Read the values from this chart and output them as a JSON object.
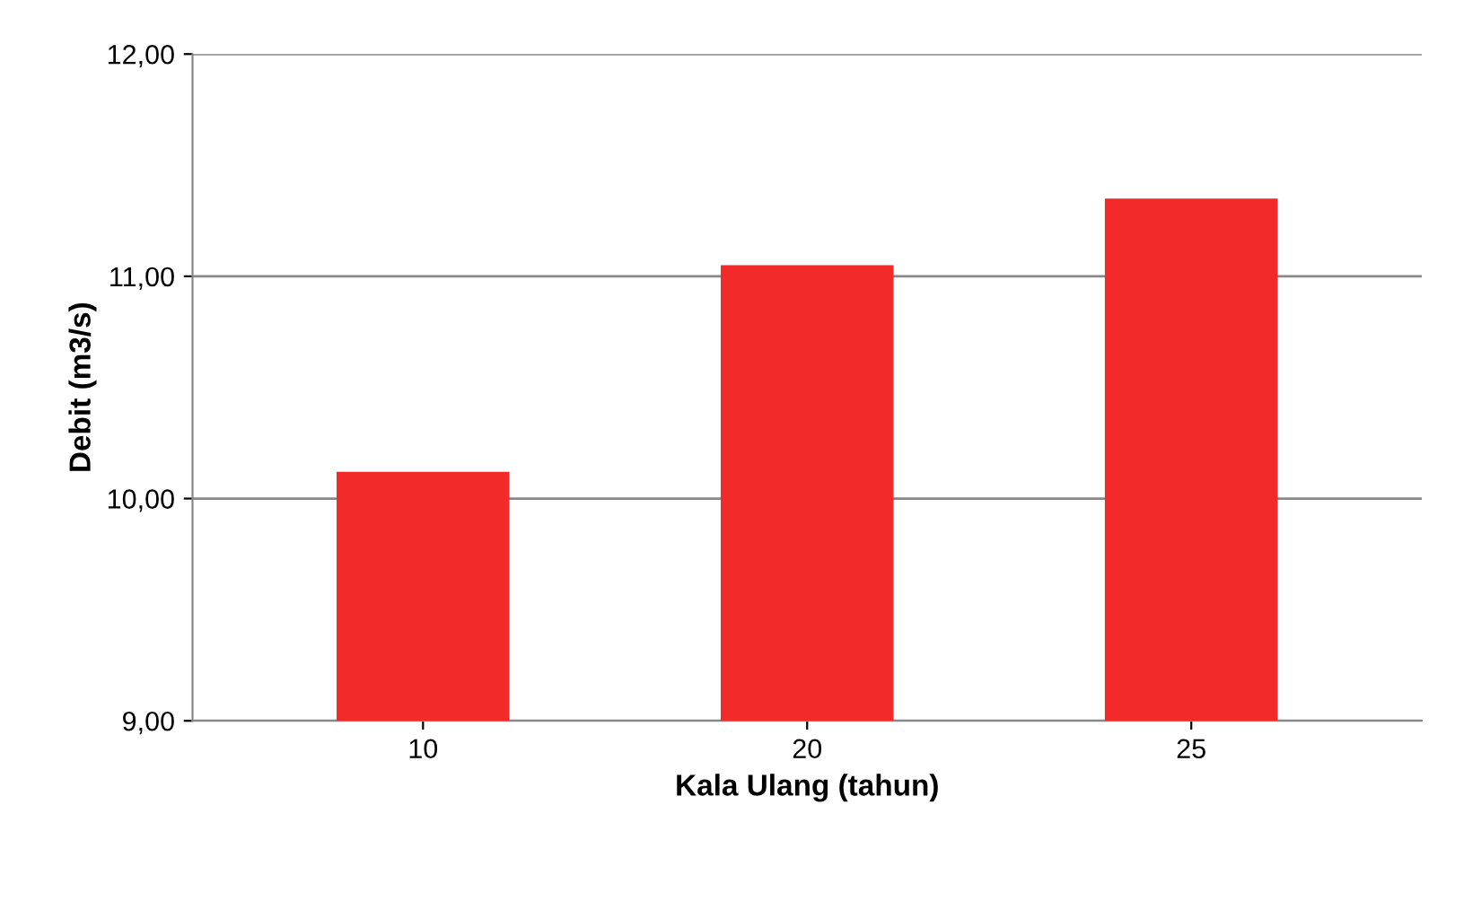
{
  "chart_data": {
    "type": "bar",
    "xlabel": "Kala Ulang (tahun)",
    "ylabel": "Debit (m3/s)",
    "categories": [
      "10",
      "20",
      "25"
    ],
    "values": [
      10.12,
      11.05,
      11.35
    ],
    "color": "#f22a2a",
    "ylim": [
      9,
      12
    ],
    "yticks": [
      {
        "value": 9,
        "label": "9,00"
      },
      {
        "value": 10,
        "label": "10,00"
      },
      {
        "value": 11,
        "label": "11,00"
      },
      {
        "value": 12,
        "label": "12,00"
      }
    ],
    "grid": "y"
  }
}
